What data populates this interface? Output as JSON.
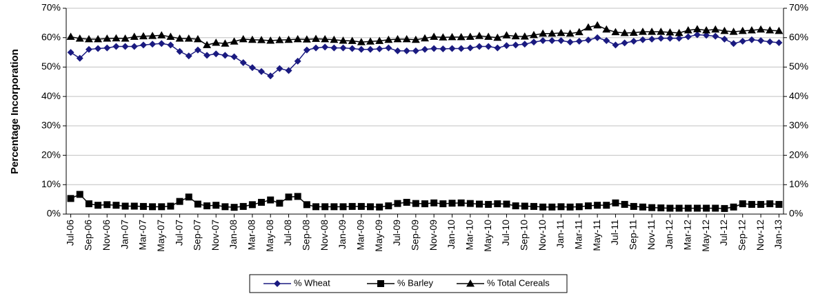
{
  "chart_data": {
    "type": "line",
    "y_label": "Percentage Incorporation",
    "categories": [
      "Jul-06",
      null,
      "Sep-06",
      null,
      "Nov-06",
      null,
      "Jan-07",
      null,
      "Mar-07",
      null,
      "May-07",
      null,
      "Jul-07",
      null,
      "Sep-07",
      null,
      "Nov-07",
      null,
      "Jan-08",
      null,
      "Mar-08",
      null,
      "May-08",
      null,
      "Jul-08",
      null,
      "Sep-08",
      null,
      "Nov-08",
      null,
      "Jan-09",
      null,
      "Mar-09",
      null,
      "May-09",
      null,
      "Jul-09",
      null,
      "Sep-09",
      null,
      "Nov-09",
      null,
      "Jan-10",
      null,
      "Mar-10",
      null,
      "May-10",
      null,
      "Jul-10",
      null,
      "Sep-10",
      null,
      "Nov-10",
      null,
      "Jan-11",
      null,
      "Mar-11",
      null,
      "May-11",
      null,
      "Jul-11",
      null,
      "Sep-11",
      null,
      "Nov-11",
      null,
      "Jan-12",
      null,
      "Mar-12",
      null,
      "May-12",
      null,
      "Jul-12",
      null,
      "Sep-12",
      null,
      "Nov-12",
      null,
      "Jan-13"
    ],
    "series": [
      {
        "name": "% Wheat",
        "color": "#1a1a80",
        "marker": "diamond",
        "values": [
          55,
          53,
          56,
          56.3,
          56.5,
          57,
          57,
          57,
          57.5,
          57.8,
          58,
          57.5,
          55.3,
          53.8,
          55.8,
          54,
          54.5,
          54,
          53.5,
          51.5,
          49.8,
          48.5,
          47,
          49.5,
          48.8,
          52,
          55.8,
          56.5,
          56.8,
          56.5,
          56.5,
          56.3,
          56,
          56,
          56.2,
          56.5,
          55.5,
          55.5,
          55.5,
          56,
          56.3,
          56.2,
          56.3,
          56.3,
          56.5,
          57,
          57,
          56.5,
          57.3,
          57.5,
          57.8,
          58.5,
          59,
          59,
          59,
          58.5,
          58.8,
          59.2,
          60,
          59,
          57.5,
          58.2,
          58.8,
          59.3,
          59.5,
          59.8,
          59.8,
          59.8,
          60.3,
          61,
          60.8,
          60.5,
          59.5,
          58,
          58.8,
          59.3,
          59,
          58.6,
          58.3
        ]
      },
      {
        "name": "% Barley",
        "color": "#000000",
        "marker": "square",
        "values": [
          5.3,
          6.7,
          3.5,
          3,
          3.2,
          3,
          2.7,
          2.7,
          2.6,
          2.5,
          2.5,
          2.7,
          4.3,
          5.8,
          3.4,
          2.8,
          3,
          2.5,
          2.3,
          2.6,
          3.2,
          4,
          4.8,
          3.7,
          5.8,
          6,
          3.2,
          2.5,
          2.5,
          2.5,
          2.5,
          2.6,
          2.6,
          2.5,
          2.4,
          2.8,
          3.6,
          4,
          3.6,
          3.5,
          3.8,
          3.5,
          3.7,
          3.8,
          3.6,
          3.4,
          3.3,
          3.5,
          3.4,
          2.8,
          2.7,
          2.6,
          2.4,
          2.4,
          2.5,
          2.4,
          2.5,
          2.8,
          3,
          3,
          3.8,
          3.3,
          2.6,
          2.4,
          2.2,
          2.1,
          2,
          2,
          2,
          2,
          2,
          2,
          1.9,
          2.4,
          3.5,
          3.3,
          3.3,
          3.5,
          3.3
        ]
      },
      {
        "name": "% Total Cereals",
        "color": "#000000",
        "marker": "triangle",
        "values": [
          60.3,
          59.7,
          59.5,
          59.5,
          59.7,
          59.8,
          59.7,
          60.3,
          60.5,
          60.6,
          60.8,
          60.3,
          59.7,
          59.7,
          59.5,
          57.5,
          58.3,
          58,
          58.7,
          59.5,
          59.3,
          59.2,
          59,
          59.2,
          59.3,
          59.5,
          59.4,
          59.6,
          59.5,
          59.3,
          59,
          58.9,
          58.5,
          58.7,
          58.9,
          59.3,
          59.5,
          59.5,
          59.3,
          59.8,
          60.3,
          60.1,
          60.2,
          60.2,
          60.3,
          60.6,
          60.3,
          60,
          60.8,
          60.5,
          60.4,
          60.9,
          61.4,
          61.4,
          61.6,
          61.4,
          61.9,
          63.5,
          64.2,
          62.8,
          61.9,
          61.6,
          61.7,
          62,
          62,
          62,
          61.8,
          61.6,
          62.5,
          62.9,
          62.5,
          62.8,
          62.3,
          62,
          62.3,
          62.5,
          62.8,
          62.5,
          62.3
        ]
      }
    ],
    "ylim": [
      0,
      70
    ],
    "yticks": [
      {
        "value": 0,
        "label": "0%"
      },
      {
        "value": 10,
        "label": "10%"
      },
      {
        "value": 20,
        "label": "20%"
      },
      {
        "value": 30,
        "label": "30%"
      },
      {
        "value": 40,
        "label": "40%"
      },
      {
        "value": 50,
        "label": "50%"
      },
      {
        "value": 60,
        "label": "60%"
      },
      {
        "value": 70,
        "label": "70%"
      }
    ],
    "y2lim": [
      0,
      70
    ],
    "y2ticks": [
      {
        "value": 0,
        "label": "0%"
      },
      {
        "value": 10,
        "label": "10%"
      },
      {
        "value": 20,
        "label": "20%"
      },
      {
        "value": 30,
        "label": "30%"
      },
      {
        "value": 40,
        "label": "40%"
      },
      {
        "value": 50,
        "label": "50%"
      },
      {
        "value": 60,
        "label": "60%"
      },
      {
        "value": 70,
        "label": "70%"
      }
    ],
    "grid": true,
    "legend": "bottom"
  }
}
